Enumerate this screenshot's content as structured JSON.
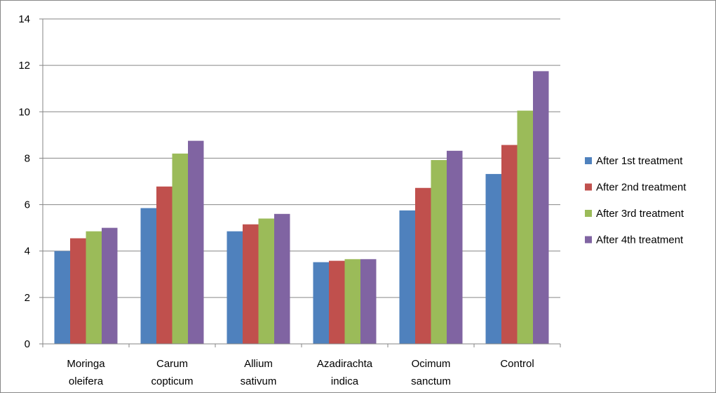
{
  "chart_data": {
    "type": "bar",
    "title": "",
    "xlabel": "",
    "ylabel": "",
    "ylim": [
      0,
      14
    ],
    "yticks": [
      "0",
      "2",
      "4",
      "6",
      "8",
      "10",
      "12",
      "14"
    ],
    "grid": true,
    "legend_position": "right",
    "categories": [
      [
        "Moringa",
        "oleifera"
      ],
      [
        "Carum",
        "copticum"
      ],
      [
        "Allium",
        "sativum"
      ],
      [
        "Azadirachta",
        "indica"
      ],
      [
        "Ocimum",
        "sanctum"
      ],
      [
        "Control"
      ]
    ],
    "series": [
      {
        "name": "After 1st treatment",
        "color": "#4f81bd",
        "values": [
          4.0,
          5.85,
          4.85,
          3.52,
          5.75,
          7.32
        ]
      },
      {
        "name": "After 2nd treatment",
        "color": "#c0504d",
        "values": [
          4.55,
          6.78,
          5.15,
          3.58,
          6.72,
          8.57
        ]
      },
      {
        "name": "After 3rd treatment",
        "color": "#9bbb59",
        "values": [
          4.85,
          8.2,
          5.4,
          3.65,
          7.92,
          10.05
        ]
      },
      {
        "name": "After 4th treatment",
        "color": "#8064a2",
        "values": [
          5.0,
          8.75,
          5.6,
          3.65,
          8.32,
          11.75
        ]
      }
    ]
  }
}
